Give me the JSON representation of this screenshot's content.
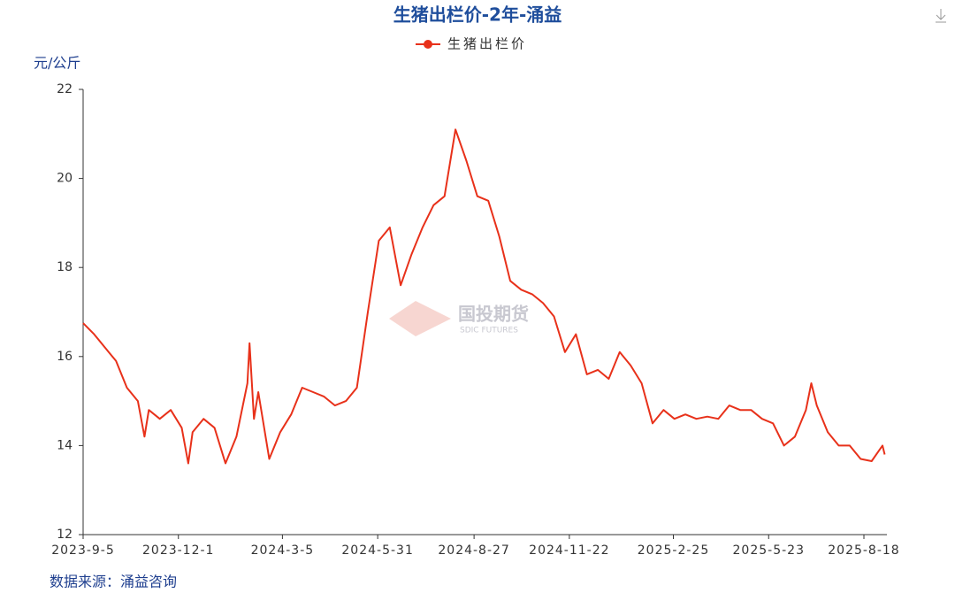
{
  "chart_data": {
    "type": "line",
    "title": "生猪出栏价-2年-涌益",
    "y_label": "元/公斤",
    "source": "数据来源：涌益咨询",
    "watermark": "国投期货",
    "watermark_sub": "SDIC FUTURES",
    "x": [
      "2023-9-5",
      "2023-9-15",
      "2023-9-25",
      "2023-10-5",
      "2023-10-15",
      "2023-10-25",
      "2023-10-31",
      "2023-11-4",
      "2023-11-14",
      "2023-11-24",
      "2023-12-4",
      "2023-12-10",
      "2023-12-14",
      "2023-12-24",
      "2024-1-3",
      "2024-1-13",
      "2024-1-23",
      "2024-2-2",
      "2024-2-4",
      "2024-2-8",
      "2024-2-12",
      "2024-2-22",
      "2024-3-3",
      "2024-3-13",
      "2024-3-23",
      "2024-4-2",
      "2024-4-12",
      "2024-4-22",
      "2024-5-2",
      "2024-5-12",
      "2024-5-22",
      "2024-6-1",
      "2024-6-11",
      "2024-6-21",
      "2024-7-1",
      "2024-7-11",
      "2024-7-21",
      "2024-7-31",
      "2024-8-10",
      "2024-8-20",
      "2024-8-30",
      "2024-9-9",
      "2024-9-19",
      "2024-9-29",
      "2024-10-9",
      "2024-10-19",
      "2024-10-29",
      "2024-11-8",
      "2024-11-18",
      "2024-11-28",
      "2024-12-8",
      "2024-12-18",
      "2024-12-28",
      "2025-1-7",
      "2025-1-17",
      "2025-1-27",
      "2025-2-6",
      "2025-2-16",
      "2025-2-26",
      "2025-3-8",
      "2025-3-18",
      "2025-3-28",
      "2025-4-7",
      "2025-4-17",
      "2025-4-27",
      "2025-5-7",
      "2025-5-17",
      "2025-5-27",
      "2025-6-6",
      "2025-6-16",
      "2025-6-26",
      "2025-7-1",
      "2025-7-6",
      "2025-7-16",
      "2025-7-26",
      "2025-8-5",
      "2025-8-15",
      "2025-8-25",
      "2025-9-4",
      "2025-9-6"
    ],
    "series": [
      {
        "name": "生猪出栏价",
        "color": "#e8311a",
        "values": [
          16.75,
          16.5,
          16.2,
          15.9,
          15.3,
          15.0,
          14.2,
          14.8,
          14.6,
          14.8,
          14.4,
          13.6,
          14.3,
          14.6,
          14.4,
          13.6,
          14.2,
          15.4,
          16.3,
          14.6,
          15.2,
          13.7,
          14.3,
          14.7,
          15.3,
          15.2,
          15.1,
          14.9,
          15.0,
          15.3,
          17.0,
          18.6,
          18.9,
          17.6,
          18.3,
          18.9,
          19.4,
          19.6,
          21.1,
          20.4,
          19.6,
          19.5,
          18.7,
          17.7,
          17.5,
          17.4,
          17.2,
          16.9,
          16.1,
          16.5,
          15.6,
          15.7,
          15.5,
          16.1,
          15.8,
          15.4,
          14.5,
          14.8,
          14.6,
          14.7,
          14.6,
          14.65,
          14.6,
          14.9,
          14.8,
          14.8,
          14.6,
          14.5,
          14.0,
          14.2,
          14.8,
          15.4,
          14.9,
          14.3,
          14.0,
          14.0,
          13.7,
          13.65,
          14.0,
          13.8
        ]
      }
    ],
    "xlim": [
      "2023-9-5",
      "2025-9-8"
    ],
    "xticks": [
      "2023-9-5",
      "2023-12-1",
      "2024-3-5",
      "2024-5-31",
      "2024-8-27",
      "2024-11-22",
      "2025-2-25",
      "2025-5-23",
      "2025-8-18"
    ],
    "ylim": [
      12,
      22
    ],
    "yticks": [
      12,
      14,
      16,
      18,
      20,
      22
    ],
    "grid": false,
    "legend": "top"
  }
}
